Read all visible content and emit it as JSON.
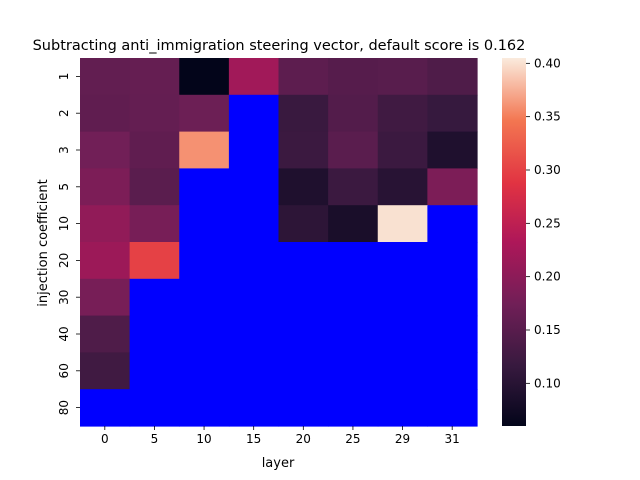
{
  "chart_data": {
    "type": "heatmap",
    "title": "Subtracting anti_immigration steering vector, default score is 0.162",
    "xlabel": "layer",
    "ylabel": "injection coefficient",
    "x_categories": [
      "0",
      "5",
      "10",
      "15",
      "20",
      "25",
      "29",
      "31"
    ],
    "y_categories": [
      "1",
      "2",
      "3",
      "5",
      "10",
      "20",
      "30",
      "40",
      "60",
      "80"
    ],
    "values": [
      [
        0.16,
        0.163,
        0.06,
        0.22,
        0.155,
        0.148,
        0.15,
        0.14
      ],
      [
        0.158,
        0.162,
        0.17,
        null,
        0.118,
        0.145,
        0.125,
        0.115
      ],
      [
        0.175,
        0.158,
        0.36,
        null,
        0.12,
        0.152,
        0.12,
        0.09
      ],
      [
        0.185,
        0.152,
        null,
        null,
        0.09,
        0.12,
        0.1,
        0.185
      ],
      [
        0.205,
        0.18,
        null,
        null,
        0.105,
        0.085,
        0.4,
        null
      ],
      [
        0.215,
        0.3,
        null,
        null,
        null,
        null,
        null,
        null
      ],
      [
        0.18,
        null,
        null,
        null,
        null,
        null,
        null,
        null
      ],
      [
        0.14,
        null,
        null,
        null,
        null,
        null,
        null,
        null
      ],
      [
        0.125,
        null,
        null,
        null,
        null,
        null,
        null,
        null
      ],
      [
        null,
        null,
        null,
        null,
        null,
        null,
        null,
        null
      ]
    ],
    "missing_color": "#0000ff",
    "colormap": "rocket",
    "colorbar": {
      "min": 0.06,
      "max": 0.405,
      "ticks": [
        "0.10",
        "0.15",
        "0.20",
        "0.25",
        "0.30",
        "0.35",
        "0.40"
      ]
    }
  }
}
